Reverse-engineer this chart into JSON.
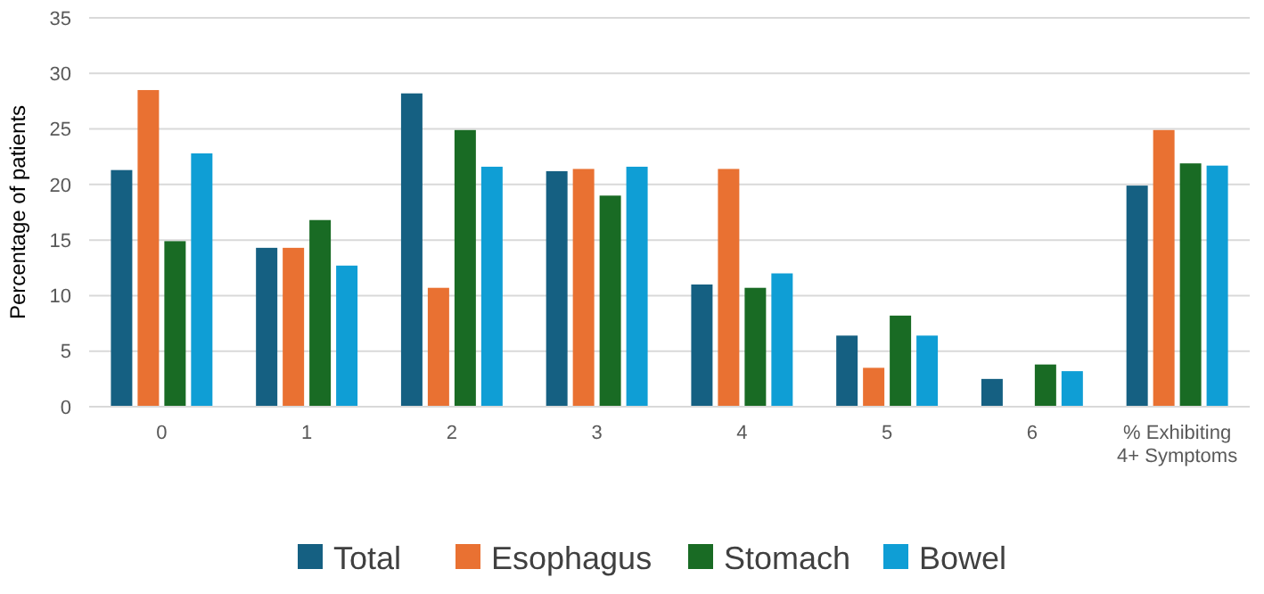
{
  "chart_data": {
    "type": "bar",
    "ylabel": "Percentage of patients",
    "categories": [
      "0",
      "1",
      "2",
      "3",
      "4",
      "5",
      "6",
      "% Exhibiting 4+ Symptoms"
    ],
    "series": [
      {
        "name": "Total",
        "color": "#156082",
        "values": [
          21.3,
          14.3,
          28.2,
          21.2,
          11.0,
          6.4,
          2.5,
          19.9
        ]
      },
      {
        "name": "Esophagus",
        "color": "#e97132",
        "values": [
          28.5,
          14.3,
          10.7,
          21.4,
          21.4,
          3.5,
          null,
          24.9
        ]
      },
      {
        "name": "Stomach",
        "color": "#196b24",
        "values": [
          14.9,
          16.8,
          24.9,
          19.0,
          10.7,
          8.2,
          3.8,
          21.9
        ]
      },
      {
        "name": "Bowel",
        "color": "#0f9ed5",
        "values": [
          22.8,
          12.7,
          21.6,
          21.6,
          12.0,
          6.4,
          3.2,
          21.7
        ]
      }
    ],
    "ylim": [
      0,
      35
    ],
    "yticks": [
      0,
      5,
      10,
      15,
      20,
      25,
      30,
      35
    ],
    "grid": "y",
    "legend": "bottom"
  }
}
